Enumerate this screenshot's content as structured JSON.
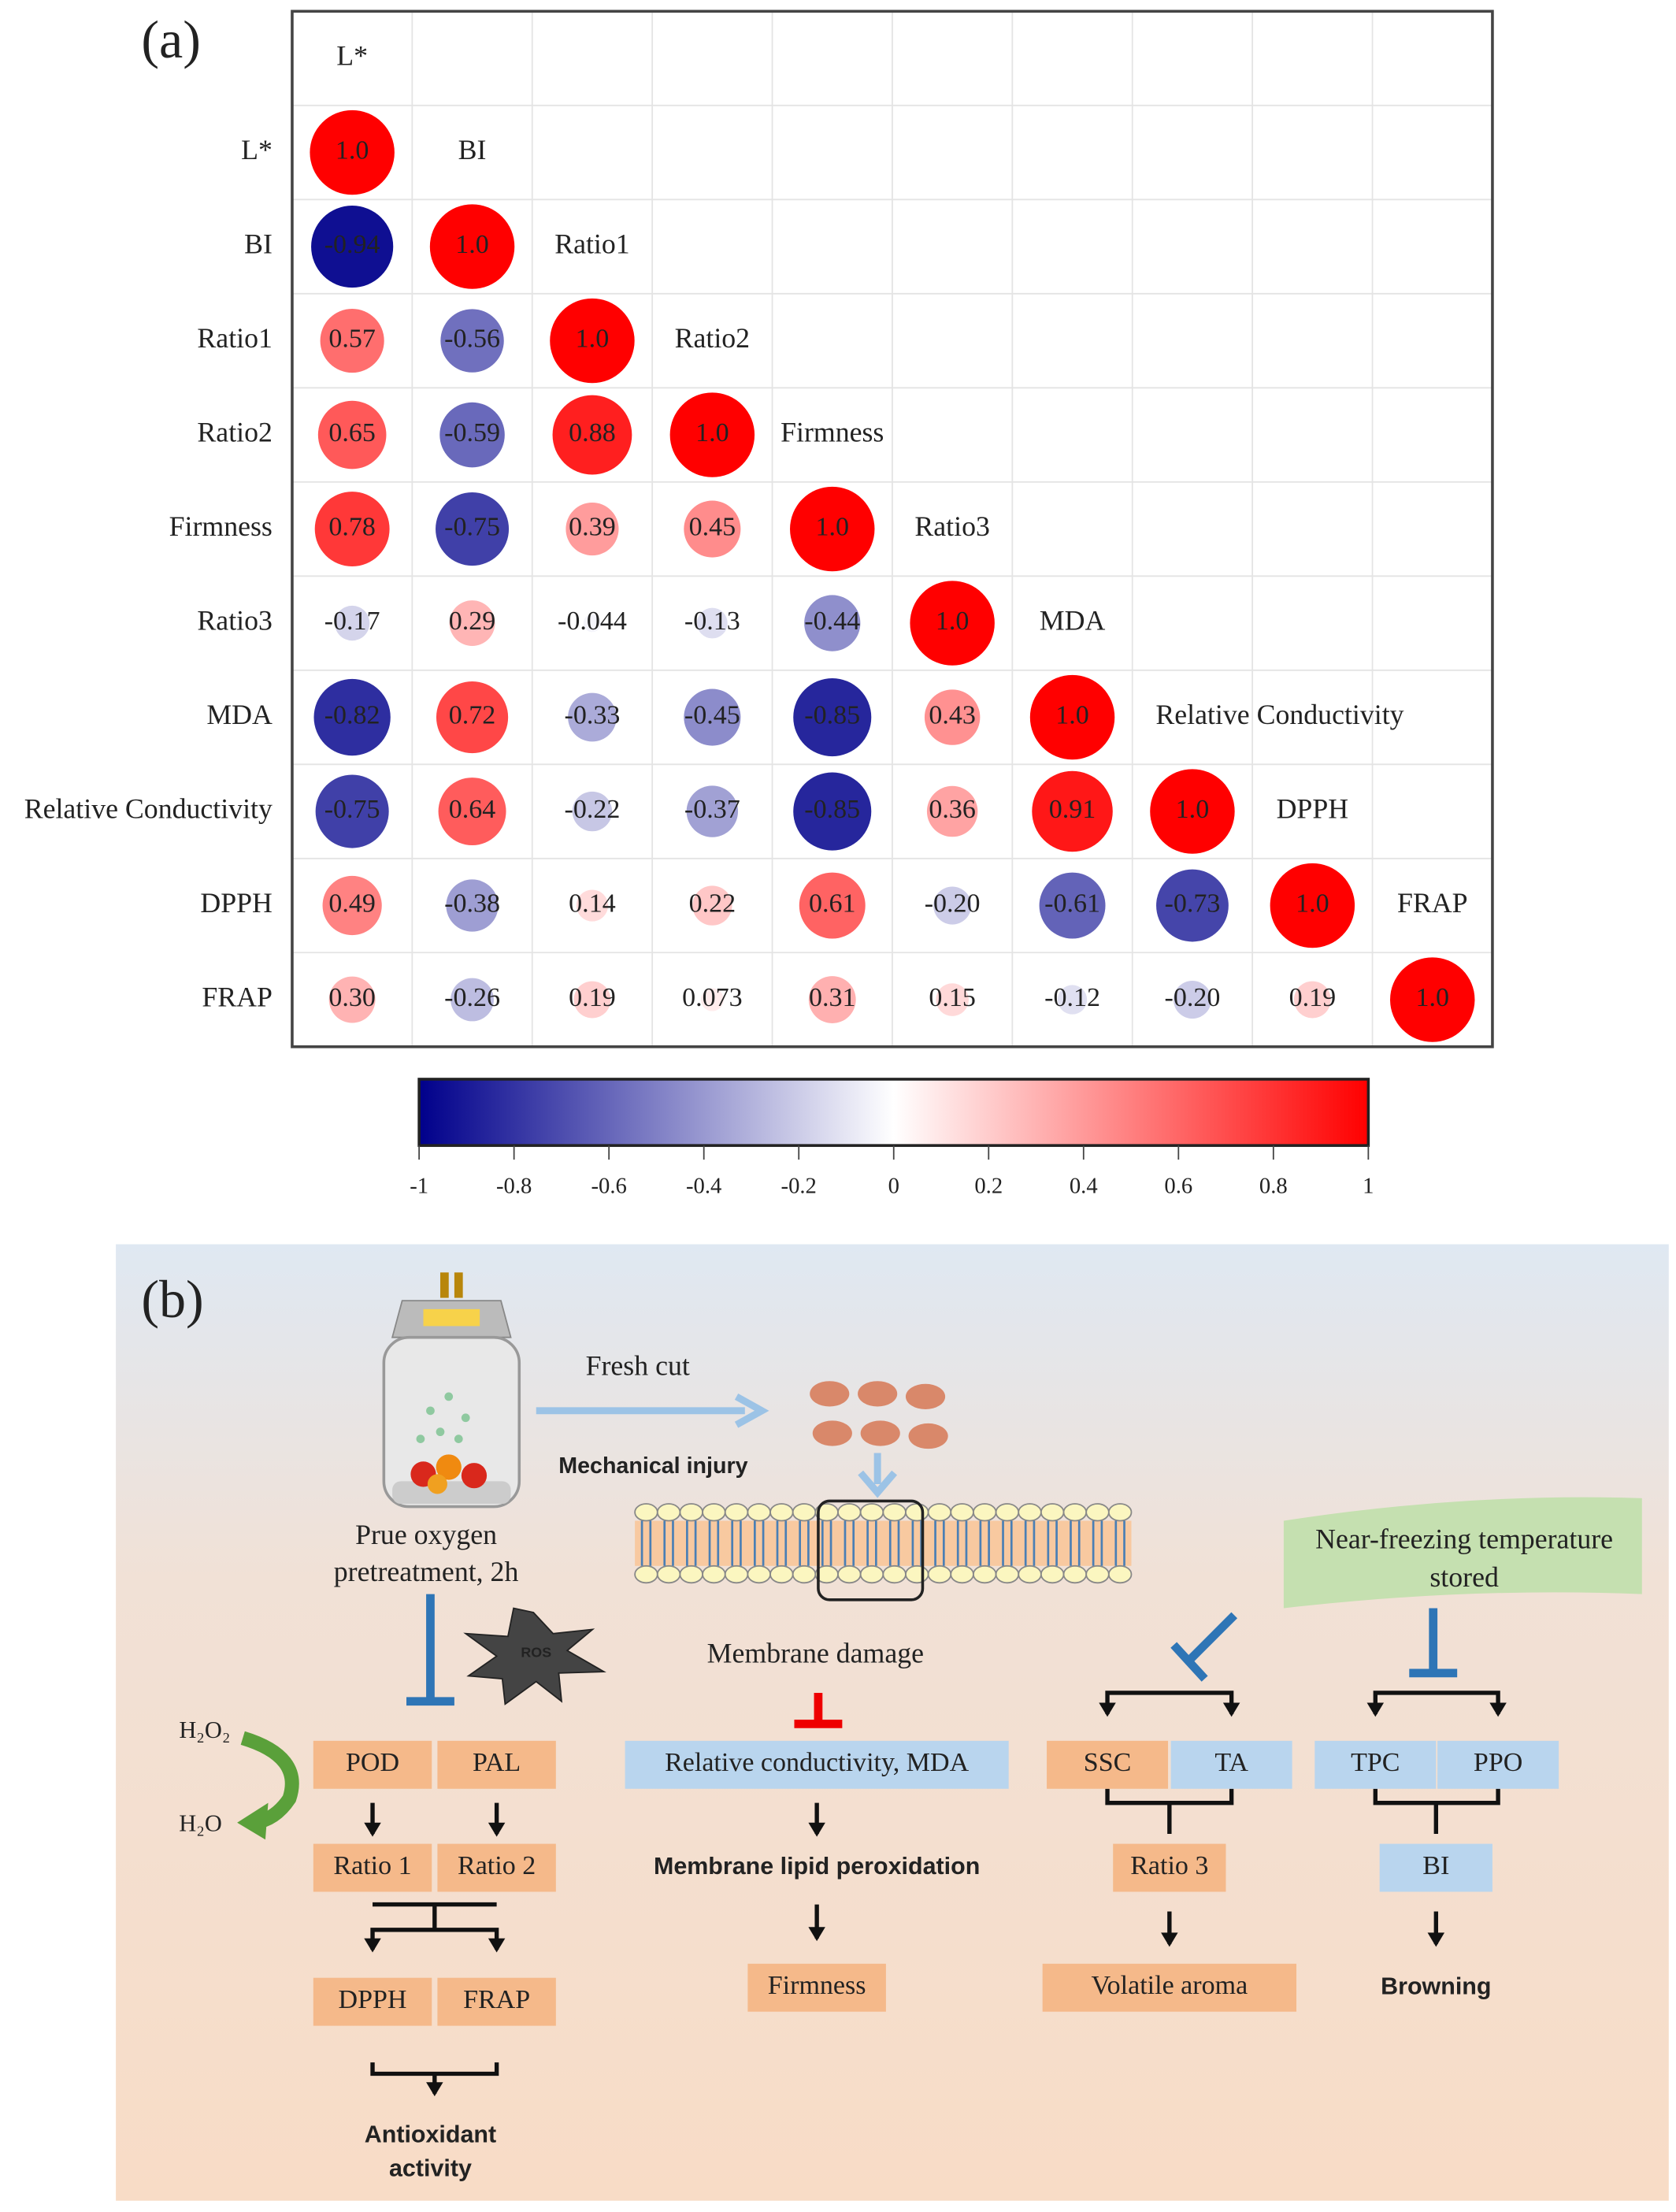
{
  "chart_data": {
    "type": "correlogram",
    "panel_label": "(a)",
    "variables": [
      "L*",
      "BI",
      "Ratio1",
      "Ratio2",
      "Firmness",
      "Ratio3",
      "MDA",
      "Relative Conductivity",
      "DPPH",
      "FRAP"
    ],
    "values": [
      [
        1.0
      ],
      [
        -0.94,
        1.0
      ],
      [
        0.57,
        -0.56,
        1.0
      ],
      [
        0.65,
        -0.59,
        0.88,
        1.0
      ],
      [
        0.78,
        -0.75,
        0.39,
        0.45,
        1.0
      ],
      [
        -0.17,
        0.29,
        -0.044,
        -0.13,
        -0.44,
        1.0
      ],
      [
        -0.82,
        0.72,
        -0.33,
        -0.45,
        -0.85,
        0.43,
        1.0
      ],
      [
        -0.75,
        0.64,
        -0.22,
        -0.37,
        -0.85,
        0.36,
        0.91,
        1.0
      ],
      [
        0.49,
        -0.38,
        0.14,
        0.22,
        0.61,
        -0.2,
        -0.61,
        -0.73,
        1.0
      ],
      [
        0.3,
        -0.26,
        0.19,
        0.073,
        0.31,
        0.15,
        -0.12,
        -0.2,
        0.19,
        1.0
      ]
    ],
    "value_labels": [
      [
        "1.0"
      ],
      [
        "-0.94",
        "1.0"
      ],
      [
        "0.57",
        "-0.56",
        "1.0"
      ],
      [
        "0.65",
        "-0.59",
        "0.88",
        "1.0"
      ],
      [
        "0.78",
        "-0.75",
        "0.39",
        "0.45",
        "1.0"
      ],
      [
        "-0.17",
        "0.29",
        "-0.044",
        "-0.13",
        "-0.44",
        "1.0"
      ],
      [
        "-0.82",
        "0.72",
        "-0.33",
        "-0.45",
        "-0.85",
        "0.43",
        "1.0"
      ],
      [
        "-0.75",
        "0.64",
        "-0.22",
        "-0.37",
        "-0.85",
        "0.36",
        "0.91",
        "1.0"
      ],
      [
        "0.49",
        "-0.38",
        "0.14",
        "0.22",
        "0.61",
        "-0.20",
        "-0.61",
        "-0.73",
        "1.0"
      ],
      [
        "0.30",
        "-0.26",
        "0.19",
        "0.073",
        "0.31",
        "0.15",
        "-0.12",
        "-0.20",
        "0.19",
        "1.0"
      ]
    ],
    "colors": [
      "#00008b",
      "#ffffff",
      "#ff0000"
    ],
    "clim": [
      -1,
      1
    ],
    "cticks": [
      -1,
      -0.8,
      -0.6,
      -0.4,
      -0.2,
      0,
      0.2,
      0.4,
      0.6,
      0.8,
      1
    ]
  },
  "diagram": {
    "panel_label": "(b)",
    "labels": {
      "fresh_cut": "Fresh cut",
      "mechanical_injury": "Mechanical injury",
      "pretreatment": [
        "Prue oxygen",
        "pretreatment, 2h"
      ],
      "ros": "ROS",
      "h2o2": "H₂O₂",
      "h2o": "H₂O",
      "membrane_damage": "Membrane damage",
      "near_freezing": [
        "Near-freezing temperature",
        "stored"
      ]
    },
    "nodes": [
      {
        "label": "POD"
      },
      {
        "label": "PAL"
      },
      {
        "label": "Ratio 1"
      },
      {
        "label": "Ratio 2"
      },
      {
        "label": "DPPH"
      },
      {
        "label": "FRAP"
      },
      {
        "label": "Relative conductivity, MDA"
      },
      {
        "label": "Membrane lipid peroxidation"
      },
      {
        "label": "Firmness"
      },
      {
        "label": "SSC"
      },
      {
        "label": "TA"
      },
      {
        "label": "Ratio 3"
      },
      {
        "label": "Volatile aroma"
      },
      {
        "label": "TPC"
      },
      {
        "label": "PPO"
      },
      {
        "label": "BI"
      },
      {
        "label": "Browning"
      },
      {
        "label": "Antioxidant"
      },
      {
        "label": "activity"
      }
    ]
  }
}
